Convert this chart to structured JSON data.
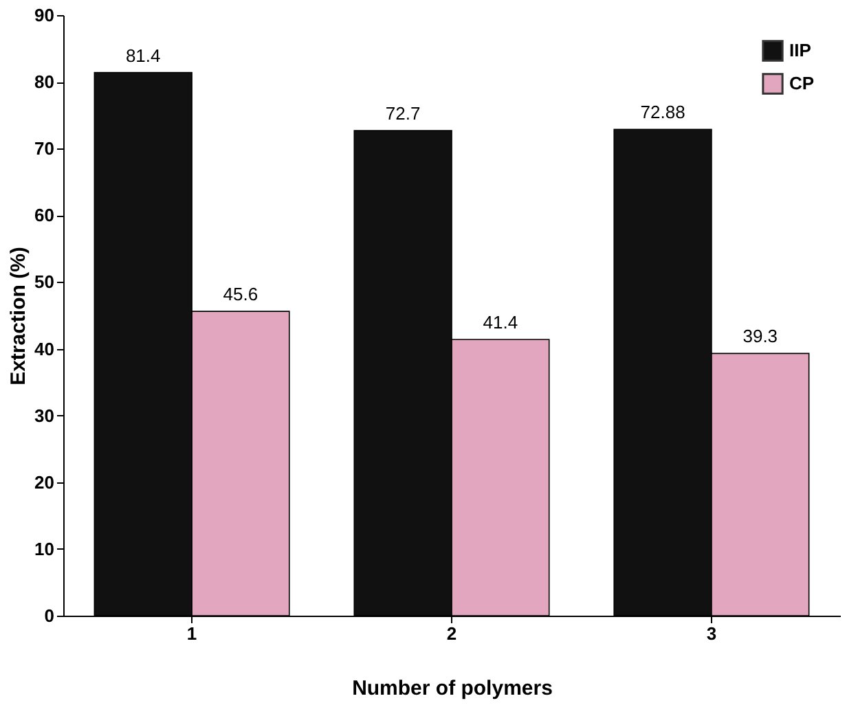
{
  "chart_data": {
    "type": "bar",
    "xlabel": "Number of polymers",
    "ylabel": "Extraction (%)",
    "categories": [
      "1",
      "2",
      "3"
    ],
    "series": [
      {
        "name": "IIP",
        "color": "#111111",
        "values": [
          81.4,
          72.7,
          72.88
        ]
      },
      {
        "name": "CP",
        "color": "#e3a6bf",
        "values": [
          45.6,
          41.4,
          39.3
        ]
      }
    ],
    "ylim": [
      0,
      90
    ],
    "yticks": [
      0,
      10,
      20,
      30,
      40,
      50,
      60,
      70,
      80,
      90
    ],
    "grid": false,
    "legend": "top right",
    "data_labels": true
  }
}
